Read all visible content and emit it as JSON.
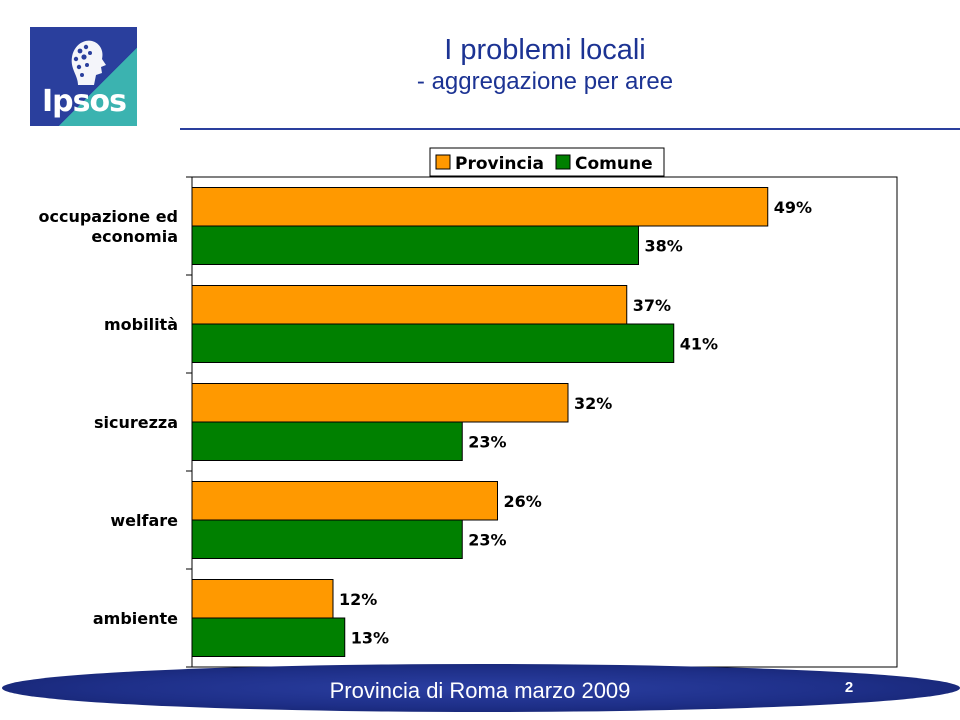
{
  "header": {
    "logo_text": "Ipsos",
    "title": "I problemi locali",
    "subtitle": "-  aggregazione per aree"
  },
  "footer": {
    "text": "Provincia di Roma marzo 2009",
    "page": "2"
  },
  "colors": {
    "brand_blue": "#2a3f9d",
    "teal": "#3bb3b0",
    "provincia": "#ff9900",
    "comune": "#008000"
  },
  "chart_data": {
    "type": "bar",
    "orientation": "horizontal",
    "categories": [
      "occupazione ed economia",
      "mobilità",
      "sicurezza",
      "welfare",
      "ambiente"
    ],
    "series": [
      {
        "name": "Provincia",
        "values": [
          49,
          37,
          32,
          26,
          12
        ]
      },
      {
        "name": "Comune",
        "values": [
          38,
          41,
          23,
          23,
          13
        ]
      }
    ],
    "value_suffix": "%",
    "xlim": [
      0,
      60
    ],
    "grid": false,
    "legend": "top"
  }
}
